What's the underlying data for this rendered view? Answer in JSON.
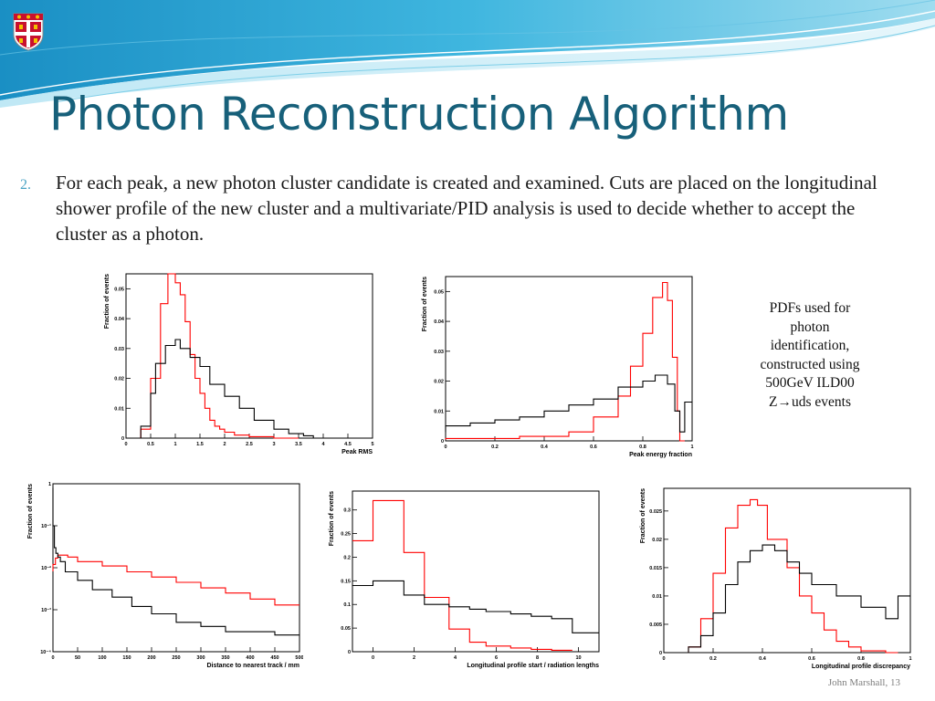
{
  "slide": {
    "title": "Photon Reconstruction Algorithm",
    "bullet_number": "2.",
    "body": "For each peak, a new photon cluster candidate is created and examined. Cuts are placed on the longitudinal shower profile of the new cluster and a multivariate/PID analysis is used to decide whether to accept the cluster as a photon.",
    "side_note": [
      "PDFs used for",
      "photon",
      "identification,",
      "constructed using",
      "500GeV ILD00",
      "Z→uds events"
    ],
    "footer": "John Marshall, 13"
  },
  "colors": {
    "title": "#17607a",
    "signal": "#ff0000",
    "background": "#000000",
    "banner": "#2aa3d0"
  },
  "chart_data": [
    {
      "type": "line",
      "log_y": false,
      "xlabel": "Peak RMS",
      "ylabel": "Fraction of events",
      "xlim": [
        0,
        5
      ],
      "ylim": [
        0,
        0.055
      ],
      "xticks": [
        0,
        0.5,
        1,
        1.5,
        2,
        2.5,
        3,
        3.5,
        4,
        4.5,
        5
      ],
      "xtick_labels": [
        "0",
        "0.5",
        "1",
        "1.5",
        "2",
        "2.5",
        "3",
        "3.5",
        "4",
        "4.5",
        "5"
      ],
      "yticks": [
        0,
        0.01,
        0.02,
        0.03,
        0.04,
        0.05
      ],
      "ytick_labels": [
        "0",
        "0.01",
        "0.02",
        "0.03",
        "0.04",
        "0.05"
      ],
      "series": [
        {
          "color": "#ff0000",
          "x": [
            0.3,
            0.5,
            0.7,
            0.85,
            1.0,
            1.1,
            1.2,
            1.3,
            1.4,
            1.5,
            1.6,
            1.7,
            1.8,
            1.9,
            2.0,
            2.2,
            2.5,
            3.0,
            3.5
          ],
          "y": [
            0.0,
            0.003,
            0.02,
            0.045,
            0.055,
            0.052,
            0.048,
            0.039,
            0.028,
            0.02,
            0.015,
            0.01,
            0.006,
            0.004,
            0.003,
            0.002,
            0.001,
            0.0005,
            0.0
          ]
        },
        {
          "color": "#000000",
          "x": [
            0.3,
            0.5,
            0.6,
            0.8,
            1.0,
            1.1,
            1.3,
            1.5,
            1.7,
            2.0,
            2.3,
            2.6,
            3.0,
            3.3,
            3.6,
            3.8,
            4.0
          ],
          "y": [
            0.0,
            0.004,
            0.015,
            0.025,
            0.031,
            0.033,
            0.03,
            0.027,
            0.024,
            0.018,
            0.014,
            0.01,
            0.006,
            0.003,
            0.0015,
            0.0008,
            0.0
          ]
        }
      ]
    },
    {
      "type": "line",
      "log_y": false,
      "xlabel": "Peak energy fraction",
      "ylabel": "Fraction of events",
      "xlim": [
        0,
        1
      ],
      "ylim": [
        0,
        0.055
      ],
      "xticks": [
        0,
        0.2,
        0.4,
        0.6,
        0.8,
        1
      ],
      "xtick_labels": [
        "0",
        "0.2",
        "0.4",
        "0.6",
        "0.8",
        "1"
      ],
      "yticks": [
        0,
        0.01,
        0.02,
        0.03,
        0.04,
        0.05
      ],
      "ytick_labels": [
        "0",
        "0.01",
        "0.02",
        "0.03",
        "0.04",
        "0.05"
      ],
      "series": [
        {
          "color": "#ff0000",
          "x": [
            0.0,
            0.3,
            0.5,
            0.6,
            0.7,
            0.75,
            0.8,
            0.84,
            0.88,
            0.9,
            0.92,
            0.94,
            0.95,
            0.97
          ],
          "y": [
            0.0005,
            0.0008,
            0.0015,
            0.003,
            0.008,
            0.015,
            0.025,
            0.036,
            0.048,
            0.053,
            0.047,
            0.028,
            0.01,
            0.0
          ]
        },
        {
          "color": "#000000",
          "x": [
            0.0,
            0.1,
            0.2,
            0.3,
            0.4,
            0.5,
            0.6,
            0.7,
            0.8,
            0.85,
            0.9,
            0.93,
            0.95,
            0.97,
            1.0
          ],
          "y": [
            0.003,
            0.005,
            0.006,
            0.007,
            0.008,
            0.01,
            0.012,
            0.014,
            0.018,
            0.02,
            0.022,
            0.019,
            0.01,
            0.003,
            0.013
          ]
        }
      ]
    },
    {
      "type": "line",
      "log_y": true,
      "xlabel": "Distance to nearest track / mm",
      "ylabel": "Fraction of events",
      "xlim": [
        0,
        500
      ],
      "ylim": [
        0.0001,
        1
      ],
      "xticks": [
        0,
        50,
        100,
        150,
        200,
        250,
        300,
        350,
        400,
        450,
        500
      ],
      "xtick_labels": [
        "0",
        "50",
        "100",
        "150",
        "200",
        "250",
        "300",
        "350",
        "400",
        "450",
        "500"
      ],
      "yticks": [
        0.0001,
        0.001,
        0.01,
        0.1,
        1
      ],
      "ytick_labels": [
        "10⁻⁴",
        "10⁻³",
        "10⁻²",
        "10⁻¹",
        "1"
      ],
      "series": [
        {
          "color": "#ff0000",
          "x": [
            0,
            5,
            10,
            20,
            30,
            50,
            100,
            150,
            200,
            250,
            300,
            350,
            400,
            450,
            500
          ],
          "y": [
            0.0082,
            0.012,
            0.017,
            0.02,
            0.02,
            0.018,
            0.014,
            0.011,
            0.008,
            0.006,
            0.0045,
            0.0033,
            0.0025,
            0.0018,
            0.0013
          ]
        },
        {
          "color": "#000000",
          "x": [
            0,
            3,
            6,
            10,
            15,
            25,
            50,
            80,
            120,
            160,
            200,
            250,
            300,
            350,
            400,
            450,
            500
          ],
          "y": [
            0.8,
            0.1,
            0.03,
            0.022,
            0.018,
            0.014,
            0.008,
            0.005,
            0.003,
            0.002,
            0.0012,
            0.0008,
            0.0005,
            0.0004,
            0.0003,
            0.0003,
            0.00025
          ]
        }
      ]
    },
    {
      "type": "line",
      "log_y": false,
      "step": true,
      "xlabel": "Longitudinal profile start / radiation lengths",
      "ylabel": "Fraction of events",
      "xlim": [
        -1,
        11
      ],
      "ylim": [
        0,
        0.34
      ],
      "xticks": [
        0,
        2,
        4,
        6,
        8,
        10
      ],
      "xtick_labels": [
        "0",
        "2",
        "4",
        "6",
        "8",
        "10"
      ],
      "yticks": [
        0,
        0.05,
        0.1,
        0.15,
        0.2,
        0.25,
        0.3
      ],
      "ytick_labels": [
        "0",
        "0.05",
        "0.1",
        "0.15",
        "0.2",
        "0.25",
        "0.3"
      ],
      "series": [
        {
          "color": "#ff0000",
          "edges": [
            -1,
            0,
            1.5,
            2.5,
            3.7,
            4.7,
            5.5,
            6.7,
            7.7,
            8.7,
            9.7
          ],
          "values": [
            0.235,
            0.32,
            0.21,
            0.115,
            0.048,
            0.02,
            0.012,
            0.008,
            0.005,
            0.003
          ]
        },
        {
          "color": "#000000",
          "edges": [
            -1,
            0,
            1.5,
            2.5,
            3.7,
            4.7,
            5.5,
            6.7,
            7.7,
            8.7,
            9.7,
            11
          ],
          "values": [
            0.14,
            0.15,
            0.12,
            0.1,
            0.095,
            0.09,
            0.085,
            0.08,
            0.075,
            0.07,
            0.04
          ]
        }
      ]
    },
    {
      "type": "line",
      "log_y": false,
      "xlabel": "Longitudinal profile discrepancy",
      "ylabel": "Fraction of events",
      "xlim": [
        0,
        1
      ],
      "ylim": [
        0,
        0.029
      ],
      "xticks": [
        0,
        0.2,
        0.4,
        0.6,
        0.8,
        1
      ],
      "xtick_labels": [
        "0",
        "0.2",
        "0.4",
        "0.6",
        "0.8",
        "1"
      ],
      "yticks": [
        0,
        0.005,
        0.01,
        0.015,
        0.02,
        0.025
      ],
      "ytick_labels": [
        "0",
        "0.005",
        "0.01",
        "0.015",
        "0.02",
        "0.025"
      ],
      "series": [
        {
          "color": "#ff0000",
          "x": [
            0.1,
            0.15,
            0.2,
            0.25,
            0.3,
            0.35,
            0.38,
            0.42,
            0.5,
            0.55,
            0.6,
            0.65,
            0.7,
            0.75,
            0.8,
            0.9,
            0.95
          ],
          "y": [
            0.0,
            0.001,
            0.006,
            0.014,
            0.022,
            0.026,
            0.027,
            0.026,
            0.02,
            0.015,
            0.01,
            0.007,
            0.004,
            0.002,
            0.001,
            0.0003,
            0.0
          ]
        },
        {
          "color": "#000000",
          "x": [
            0.1,
            0.15,
            0.2,
            0.25,
            0.3,
            0.35,
            0.4,
            0.45,
            0.5,
            0.55,
            0.6,
            0.7,
            0.8,
            0.9,
            0.95,
            1.0
          ],
          "y": [
            0.0,
            0.001,
            0.003,
            0.007,
            0.012,
            0.016,
            0.018,
            0.019,
            0.018,
            0.016,
            0.014,
            0.012,
            0.01,
            0.008,
            0.006,
            0.01
          ]
        }
      ]
    }
  ]
}
